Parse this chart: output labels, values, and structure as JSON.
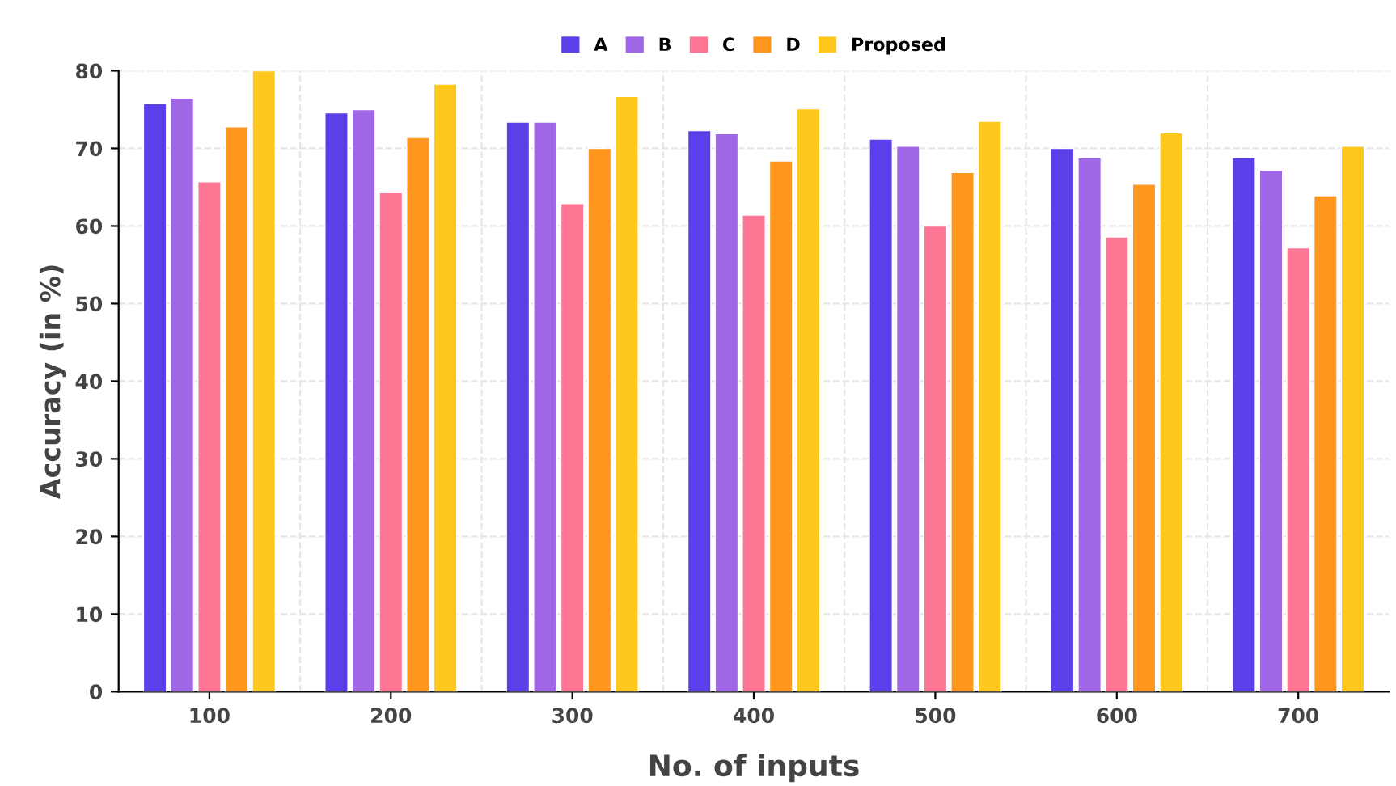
{
  "chart_data": {
    "type": "bar",
    "xlabel": "No. of inputs",
    "ylabel": "Accuracy (in %)",
    "categories": [
      "100",
      "200",
      "300",
      "400",
      "500",
      "600",
      "700"
    ],
    "series": [
      {
        "name": "A",
        "color": "#5b3fe8",
        "values": [
          75.8,
          74.6,
          73.4,
          72.3,
          71.2,
          70.0,
          68.8
        ]
      },
      {
        "name": "B",
        "color": "#9f66e6",
        "values": [
          76.5,
          75.0,
          73.4,
          71.9,
          70.3,
          68.8,
          67.2
        ]
      },
      {
        "name": "C",
        "color": "#ff7594",
        "values": [
          65.7,
          64.3,
          62.9,
          61.4,
          60.0,
          58.6,
          57.2
        ]
      },
      {
        "name": "D",
        "color": "#ff971f",
        "values": [
          72.8,
          71.4,
          70.0,
          68.4,
          66.9,
          65.4,
          63.9
        ]
      },
      {
        "name": "Proposed",
        "color": "#ffc81f",
        "values": [
          80.0,
          78.3,
          76.7,
          75.1,
          73.5,
          72.0,
          70.3
        ]
      }
    ],
    "ylim": [
      0,
      80
    ],
    "yticks": [
      0,
      10,
      20,
      30,
      40,
      50,
      60,
      70,
      80
    ],
    "grid": true,
    "legend": "top"
  }
}
